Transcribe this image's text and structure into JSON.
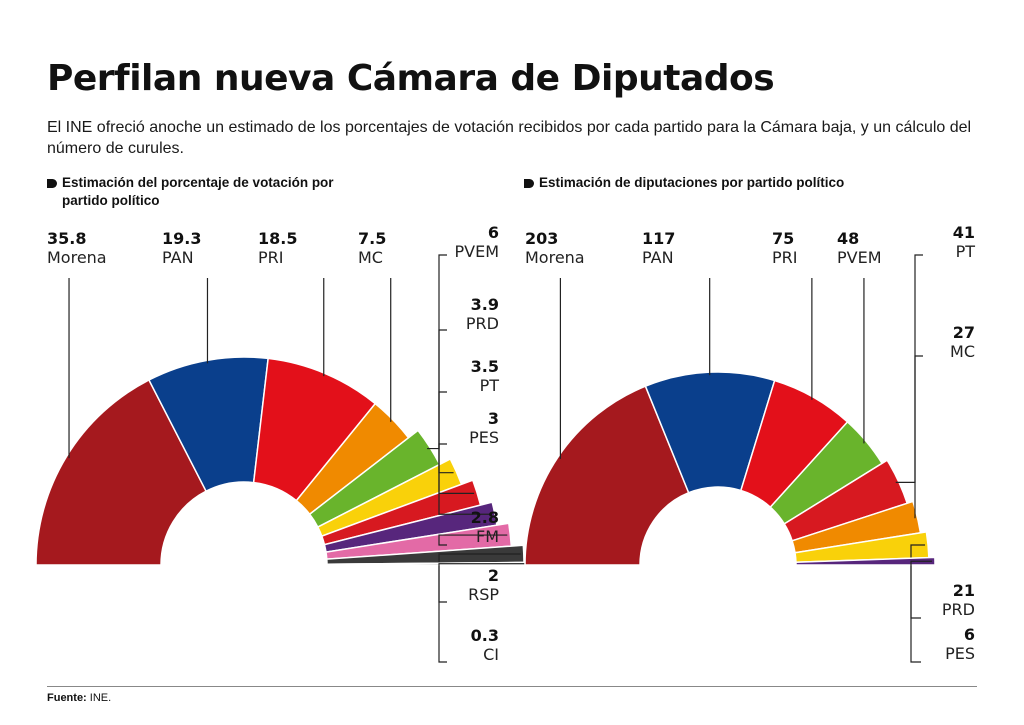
{
  "title": "Perfilan nueva Cámara de Diputados",
  "subtitle": "El INE ofreció anoche un estimado de los porcentajes de votación recibidos por cada partido para la Cámara baja, y un cálculo del número de curules.",
  "source_label": "Fuente:",
  "source_value": "INE.",
  "colors": {
    "Morena": "#a5191e",
    "PAN": "#0a3f8c",
    "PRI": "#e3101a",
    "MC": "#f08a00",
    "PVEM": "#69b42c",
    "PRD": "#f9d10a",
    "PT": "#d71920",
    "PES": "#57267c",
    "FM": "#e36aa6",
    "RSP": "#3a3a3a",
    "CI": "#9a9a9a"
  },
  "chart_data": [
    {
      "type": "pie",
      "subtype": "semicircle-donut",
      "section_title": "Estimación del porcentaje de votación por partido político",
      "categories": [
        "Morena",
        "PAN",
        "PRI",
        "MC",
        "PVEM",
        "PRD",
        "PT",
        "PES",
        "FM",
        "RSP",
        "CI"
      ],
      "values": [
        35.8,
        19.3,
        18.5,
        7.5,
        6,
        3.9,
        3.5,
        3,
        2.8,
        2,
        0.3
      ],
      "value_labels": [
        "35.8",
        "19.3",
        "18.5",
        "7.5",
        "6",
        "3.9",
        "3.5",
        "3",
        "2.8",
        "2",
        "0.3"
      ]
    },
    {
      "type": "pie",
      "subtype": "semicircle-donut",
      "section_title": "Estimación de diputaciones por partido político",
      "categories": [
        "Morena",
        "PAN",
        "PRI",
        "PVEM",
        "PT",
        "MC",
        "PRD",
        "PES"
      ],
      "values": [
        203,
        117,
        75,
        48,
        41,
        27,
        21,
        6
      ],
      "value_labels": [
        "203",
        "117",
        "75",
        "48",
        "41",
        "27",
        "21",
        "6"
      ]
    }
  ]
}
